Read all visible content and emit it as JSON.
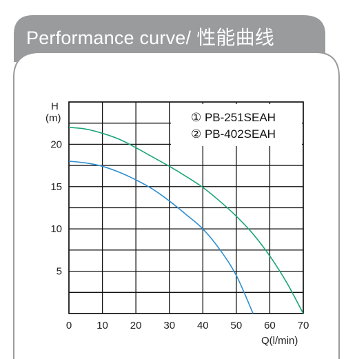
{
  "header": {
    "title_en": "Performance curve/",
    "title_zh": "性能曲线"
  },
  "colors": {
    "header_bg": "#9a9b9d",
    "curve_1": "#2f8fcf",
    "curve_2": "#1aa57a",
    "grid": "#111111"
  },
  "chart_data": {
    "type": "line",
    "xlabel": "Q(l/min)",
    "ylabel_top": "H",
    "ylabel_unit": "(m)",
    "xlim": [
      0,
      70
    ],
    "ylim": [
      0,
      25
    ],
    "xticks": [
      "0",
      "10",
      "20",
      "30",
      "40",
      "50",
      "60",
      "70"
    ],
    "yticks": [
      "5",
      "10",
      "15",
      "20"
    ],
    "grid": true,
    "legend_position": "top-right",
    "series": [
      {
        "name": "① PB-251SEAH",
        "x": [
          0,
          5,
          10,
          15,
          20,
          25,
          30,
          35,
          40,
          45,
          50,
          55
        ],
        "y": [
          18.0,
          17.8,
          17.4,
          16.7,
          15.8,
          14.7,
          13.3,
          11.7,
          10.0,
          7.6,
          4.5,
          0
        ]
      },
      {
        "name": "② PB-402SEAH",
        "x": [
          0,
          5,
          10,
          15,
          20,
          25,
          30,
          35,
          40,
          45,
          50,
          55,
          60,
          65,
          70
        ],
        "y": [
          22.0,
          21.8,
          21.3,
          20.6,
          19.6,
          18.5,
          17.4,
          16.2,
          14.9,
          13.3,
          11.5,
          9.4,
          6.8,
          3.7,
          0
        ]
      }
    ]
  }
}
